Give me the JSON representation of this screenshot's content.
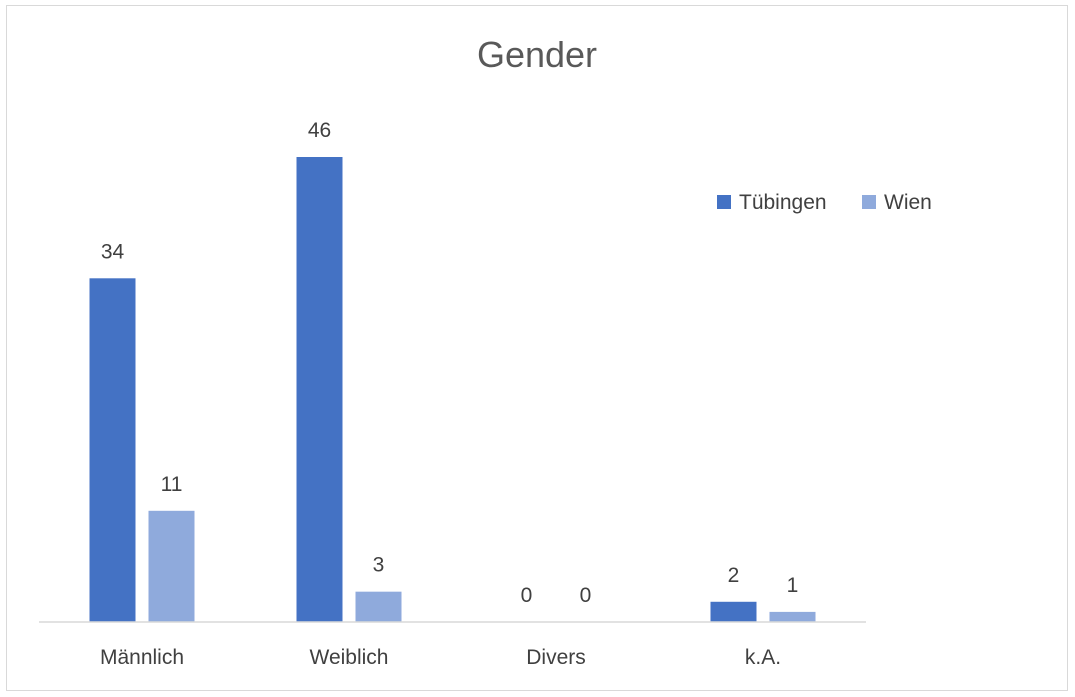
{
  "chart_data": {
    "type": "bar",
    "title": "Gender",
    "xlabel": "",
    "ylabel": "",
    "categories": [
      "Männlich",
      "Weiblich",
      "Divers",
      "k.A."
    ],
    "series": [
      {
        "name": "Tübingen",
        "values": [
          34,
          46,
          0,
          2
        ],
        "color": "#4472C4"
      },
      {
        "name": "Wien",
        "values": [
          11,
          3,
          0,
          1
        ],
        "color": "#8FAADC"
      }
    ],
    "ylim": [
      0,
      46
    ],
    "grid": false,
    "legend_position": "top-right",
    "data_labels": true
  }
}
